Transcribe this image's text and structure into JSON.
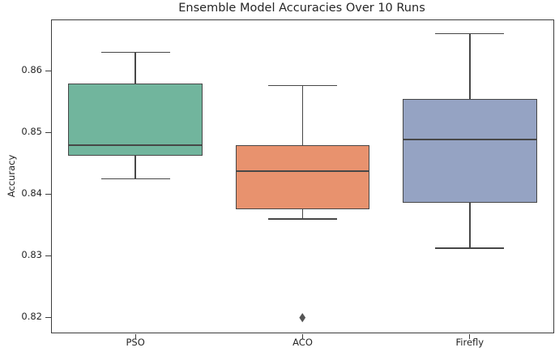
{
  "chart_data": {
    "type": "boxplot",
    "title": "Ensemble Model Accuracies Over 10 Runs",
    "xlabel": "",
    "ylabel": "Accuracy",
    "categories": [
      "PSO",
      "ACO",
      "Firefly"
    ],
    "y_ticks": [
      "0.82",
      "0.83",
      "0.84",
      "0.85",
      "0.86"
    ],
    "ylim": [
      0.8176,
      0.8682
    ],
    "grid": false,
    "legend": "none",
    "line_color": "#474747",
    "series": [
      {
        "name": "PSO",
        "color": "#71B59D",
        "whisker_low": 0.8425,
        "q1": 0.8463,
        "median": 0.848,
        "q3": 0.858,
        "whisker_high": 0.863,
        "outliers": []
      },
      {
        "name": "ACO",
        "color": "#E8926E",
        "whisker_low": 0.836,
        "q1": 0.8376,
        "median": 0.8437,
        "q3": 0.848,
        "whisker_high": 0.8576,
        "outliers": [
          0.82
        ]
      },
      {
        "name": "Firefly",
        "color": "#95A3C3",
        "whisker_low": 0.8313,
        "q1": 0.8386,
        "median": 0.8489,
        "q3": 0.8554,
        "whisker_high": 0.866,
        "outliers": []
      }
    ]
  }
}
